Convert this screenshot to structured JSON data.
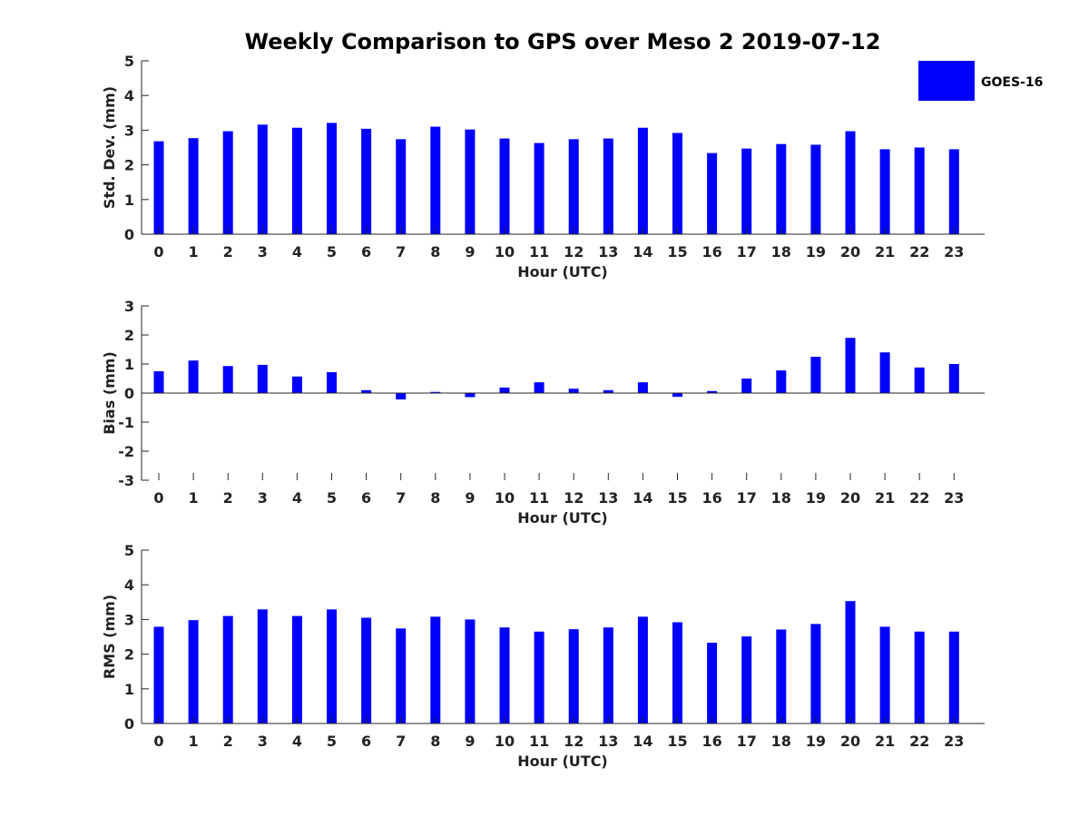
{
  "chart_data": {
    "title": "Weekly Comparison to GPS over Meso 2 2019-07-12",
    "type": "bar",
    "categories": [
      "0",
      "1",
      "2",
      "3",
      "4",
      "5",
      "6",
      "7",
      "8",
      "9",
      "10",
      "11",
      "12",
      "13",
      "14",
      "15",
      "16",
      "17",
      "18",
      "19",
      "20",
      "21",
      "22",
      "23"
    ],
    "legend": {
      "position": "top-right",
      "entries": [
        {
          "name": "GOES-16",
          "color": "#0000ff"
        }
      ]
    },
    "panels": [
      {
        "id": "stddev",
        "ylabel": "Std. Dev. (mm)",
        "xlabel": "Hour (UTC)",
        "ylim": [
          0,
          5
        ],
        "yticks": [
          0,
          1,
          2,
          3,
          4,
          5
        ],
        "series": [
          {
            "name": "GOES-16",
            "values": [
              2.68,
              2.77,
              2.97,
              3.16,
              3.07,
              3.21,
              3.04,
              2.74,
              3.1,
              3.02,
              2.76,
              2.63,
              2.74,
              2.76,
              3.07,
              2.92,
              2.34,
              2.47,
              2.6,
              2.58,
              2.97,
              2.45,
              2.5,
              2.45
            ]
          }
        ]
      },
      {
        "id": "bias",
        "ylabel": "Bias (mm)",
        "xlabel": "Hour (UTC)",
        "ylim": [
          -3,
          3
        ],
        "yticks": [
          -3,
          -2,
          -1,
          0,
          1,
          2,
          3
        ],
        "series": [
          {
            "name": "GOES-16",
            "values": [
              0.75,
              1.12,
              0.93,
              0.97,
              0.57,
              0.72,
              0.1,
              -0.22,
              0.04,
              -0.14,
              0.19,
              0.37,
              0.15,
              0.1,
              0.37,
              -0.13,
              0.07,
              0.5,
              0.78,
              1.25,
              1.9,
              1.4,
              0.88,
              1.0
            ]
          }
        ]
      },
      {
        "id": "rms",
        "ylabel": "RMS (mm)",
        "xlabel": "Hour (UTC)",
        "ylim": [
          0,
          5
        ],
        "yticks": [
          0,
          1,
          2,
          3,
          4,
          5
        ],
        "series": [
          {
            "name": "GOES-16",
            "values": [
              2.79,
              2.98,
              3.1,
              3.29,
              3.1,
              3.29,
              3.05,
              2.74,
              3.08,
              3.0,
              2.77,
              2.65,
              2.72,
              2.77,
              3.08,
              2.92,
              2.33,
              2.51,
              2.71,
              2.87,
              3.53,
              2.79,
              2.65,
              2.65
            ]
          }
        ]
      }
    ]
  }
}
